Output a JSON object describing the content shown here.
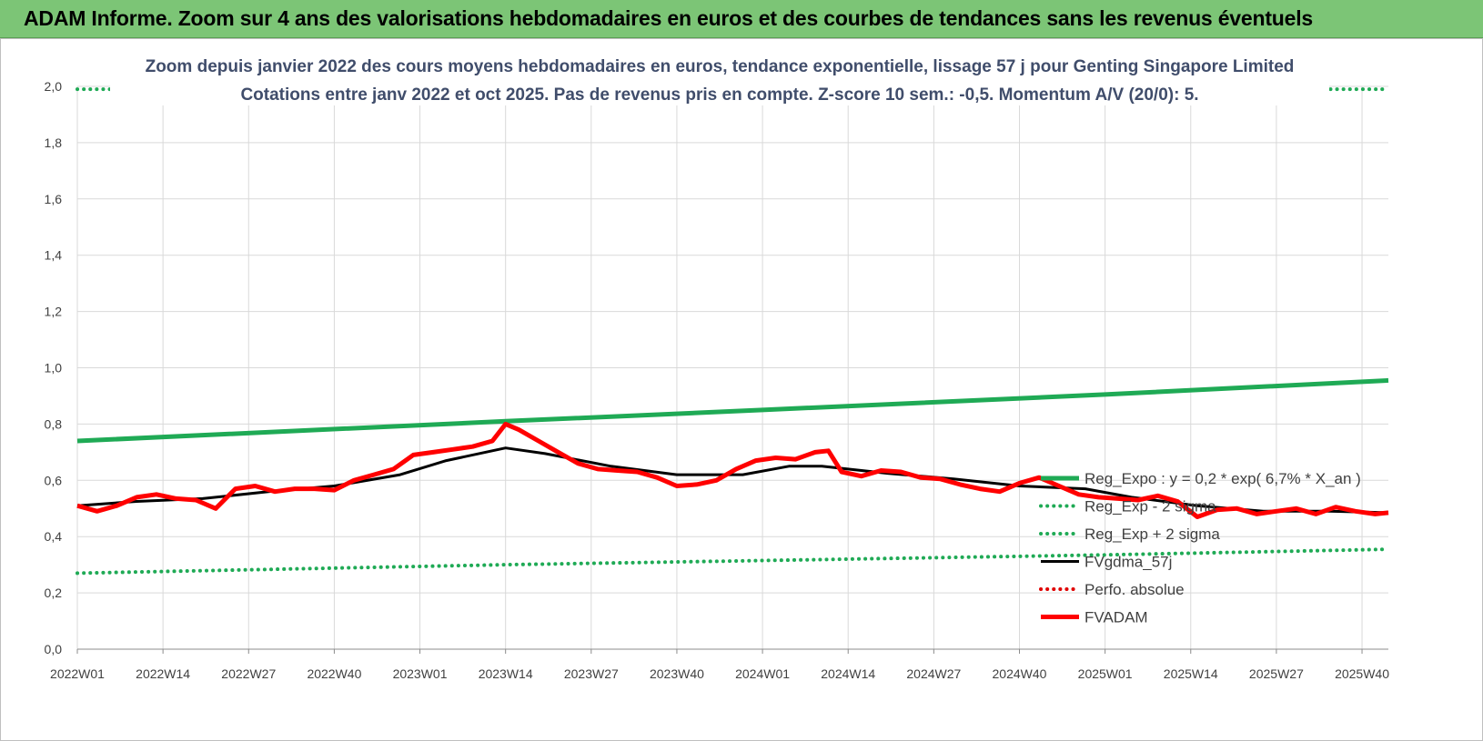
{
  "header": {
    "title": "ADAM Informe. Zoom sur 4 ans des valorisations hebdomadaires en euros et des courbes de tendances sans les revenus éventuels"
  },
  "colors": {
    "banner": "#7cc576",
    "regression": "#1faa55",
    "sigma": "#1faa55",
    "smoothing": "#000000",
    "perfo": "#e00000",
    "fvadam": "#ff0000",
    "title_text": "#404d6b",
    "grid": "#d9d9d9"
  },
  "chart_data": {
    "type": "line",
    "title": "Zoom depuis janvier 2022 des cours moyens hebdomadaires en euros, tendance exponentielle, lissage 57 j pour Genting Singapore Limited",
    "subtitle": "Cotations entre janv 2022 et oct 2025. Pas de revenus pris en compte. Z-score 10 sem.: -0,5. Momentum A/V (20/0): 5.",
    "xlabel": "",
    "ylabel": "",
    "ylim": [
      0,
      2.0
    ],
    "yticks": [
      "0,0",
      "0,2",
      "0,4",
      "0,6",
      "0,8",
      "1,0",
      "1,2",
      "1,4",
      "1,6",
      "1,8",
      "2,0"
    ],
    "xticks": [
      "2022W01",
      "2022W14",
      "2022W27",
      "2022W40",
      "2023W01",
      "2023W14",
      "2023W27",
      "2023W40",
      "2024W01",
      "2024W14",
      "2024W27",
      "2024W40",
      "2025W01",
      "2025W14",
      "2025W27",
      "2025W40"
    ],
    "grid": true,
    "legend_position": "center-right",
    "x_weeks": {
      "start": "2022W01",
      "end": "2025W44",
      "count": 200
    },
    "series": [
      {
        "name": "Reg_Expo : y = 0,2 * exp( 6,7% *  X_an )",
        "style": "solid-thick",
        "color": "#1faa55",
        "x": [
          "2022W01",
          "2023W14",
          "2024W01",
          "2025W01",
          "2025W44"
        ],
        "values": [
          0.74,
          0.81,
          0.85,
          0.905,
          0.955
        ]
      },
      {
        "name": "Reg_Exp - 2 sigma",
        "style": "dotted",
        "color": "#1faa55",
        "x": [
          "2022W01",
          "2023W14",
          "2024W01",
          "2025W01",
          "2025W44"
        ],
        "values": [
          0.27,
          0.3,
          0.315,
          0.335,
          0.355
        ]
      },
      {
        "name": "Reg_Exp + 2 sigma",
        "style": "dotted",
        "color": "#1faa55",
        "x": [
          "2022W01",
          "2025W44"
        ],
        "values": [
          1.99,
          1.99
        ]
      },
      {
        "name": "FVgdma_57j",
        "style": "solid",
        "color": "#000000",
        "x": [
          "2022W01",
          "2022W10",
          "2022W20",
          "2022W30",
          "2022W40",
          "2022W50",
          "2023W05",
          "2023W14",
          "2023W20",
          "2023W30",
          "2023W40",
          "2023W50",
          "2024W05",
          "2024W10",
          "2024W20",
          "2024W30",
          "2024W40",
          "2024W50",
          "2025W05",
          "2025W15",
          "2025W25",
          "2025W35",
          "2025W44"
        ],
        "values": [
          0.51,
          0.525,
          0.535,
          0.56,
          0.58,
          0.62,
          0.67,
          0.715,
          0.695,
          0.65,
          0.62,
          0.62,
          0.65,
          0.65,
          0.625,
          0.605,
          0.58,
          0.57,
          0.54,
          0.51,
          0.49,
          0.49,
          0.485
        ]
      },
      {
        "name": "Perfo. absolue",
        "style": "dotted",
        "color": "#e00000",
        "x": [],
        "values": []
      },
      {
        "name": "FVADAM",
        "style": "solid-thick",
        "color": "#ff0000",
        "x": [
          "2022W01",
          "2022W04",
          "2022W07",
          "2022W10",
          "2022W13",
          "2022W16",
          "2022W19",
          "2022W22",
          "2022W25",
          "2022W28",
          "2022W31",
          "2022W34",
          "2022W37",
          "2022W40",
          "2022W43",
          "2022W46",
          "2022W49",
          "2022W52",
          "2023W03",
          "2023W06",
          "2023W09",
          "2023W12",
          "2023W14",
          "2023W16",
          "2023W19",
          "2023W22",
          "2023W25",
          "2023W28",
          "2023W31",
          "2023W34",
          "2023W37",
          "2023W40",
          "2023W43",
          "2023W46",
          "2023W49",
          "2023W52",
          "2024W03",
          "2024W06",
          "2024W09",
          "2024W11",
          "2024W13",
          "2024W16",
          "2024W19",
          "2024W22",
          "2024W25",
          "2024W28",
          "2024W31",
          "2024W34",
          "2024W37",
          "2024W40",
          "2024W43",
          "2024W46",
          "2024W49",
          "2024W52",
          "2025W03",
          "2025W06",
          "2025W09",
          "2025W12",
          "2025W15",
          "2025W18",
          "2025W21",
          "2025W24",
          "2025W27",
          "2025W30",
          "2025W33",
          "2025W36",
          "2025W39",
          "2025W42",
          "2025W44"
        ],
        "values": [
          0.51,
          0.49,
          0.51,
          0.54,
          0.55,
          0.535,
          0.53,
          0.5,
          0.57,
          0.58,
          0.56,
          0.57,
          0.57,
          0.565,
          0.6,
          0.62,
          0.64,
          0.69,
          0.7,
          0.71,
          0.72,
          0.74,
          0.8,
          0.78,
          0.74,
          0.7,
          0.66,
          0.64,
          0.635,
          0.63,
          0.61,
          0.58,
          0.585,
          0.6,
          0.64,
          0.67,
          0.68,
          0.675,
          0.7,
          0.705,
          0.63,
          0.615,
          0.635,
          0.63,
          0.61,
          0.605,
          0.585,
          0.57,
          0.56,
          0.59,
          0.61,
          0.58,
          0.55,
          0.54,
          0.535,
          0.53,
          0.545,
          0.525,
          0.47,
          0.495,
          0.5,
          0.48,
          0.49,
          0.5,
          0.48,
          0.505,
          0.49,
          0.48,
          0.485
        ]
      }
    ]
  }
}
